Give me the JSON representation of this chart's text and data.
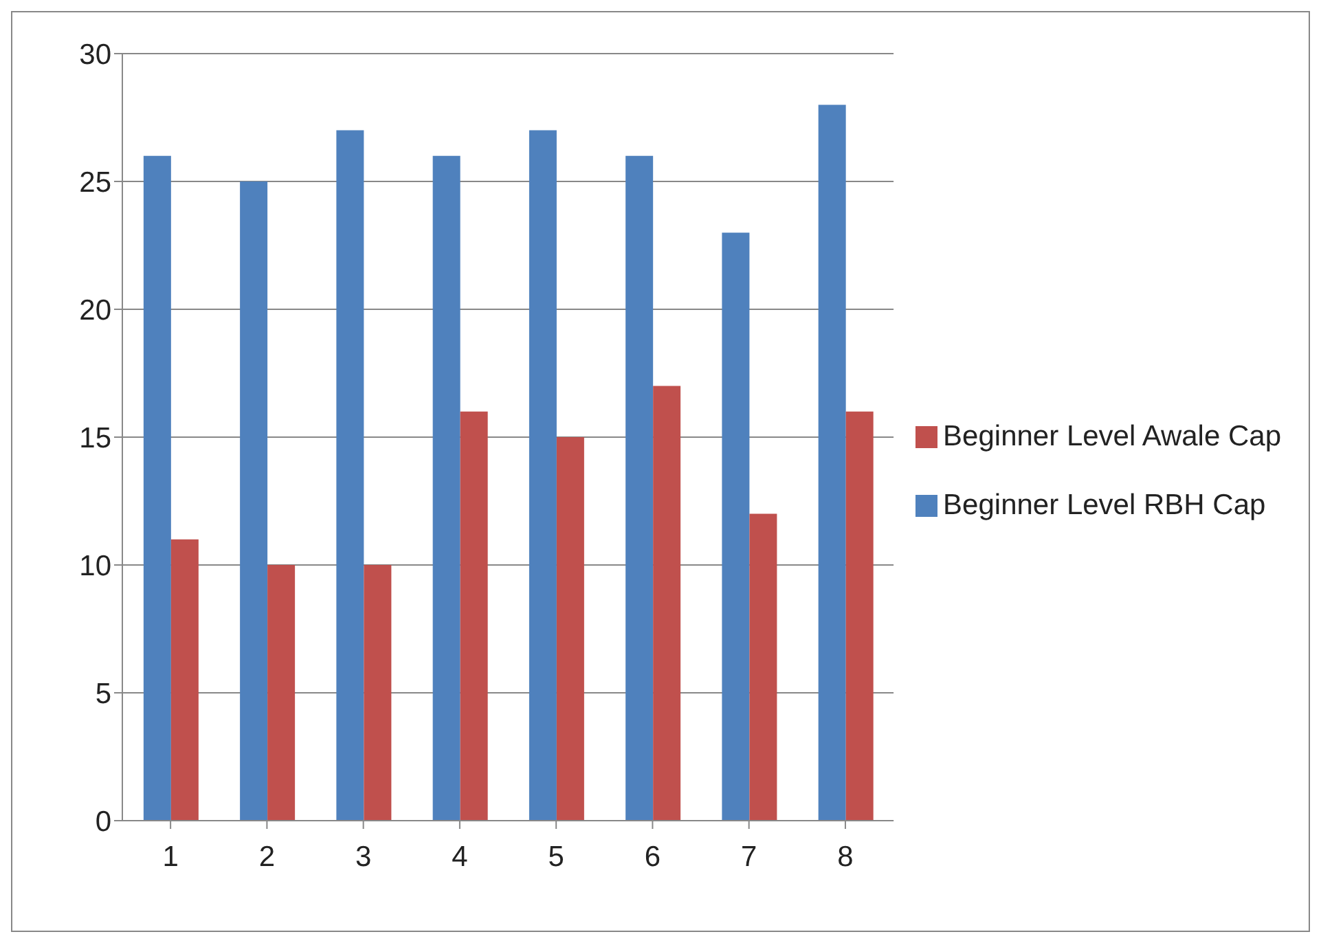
{
  "chart_data": {
    "type": "bar",
    "categories": [
      "1",
      "2",
      "3",
      "4",
      "5",
      "6",
      "7",
      "8"
    ],
    "series": [
      {
        "name": "Beginner Level RBH Cap",
        "color": "#4f81bd",
        "values": [
          26,
          25,
          27,
          26,
          27,
          26,
          23,
          28
        ]
      },
      {
        "name": "Beginner Level Awale Cap",
        "color": "#c0504d",
        "values": [
          11,
          10,
          10,
          16,
          15,
          17,
          12,
          16
        ]
      }
    ],
    "ylim": [
      0,
      30
    ],
    "yticks": [
      0,
      5,
      10,
      15,
      20,
      25,
      30
    ],
    "grid": "y",
    "legend": "right"
  }
}
